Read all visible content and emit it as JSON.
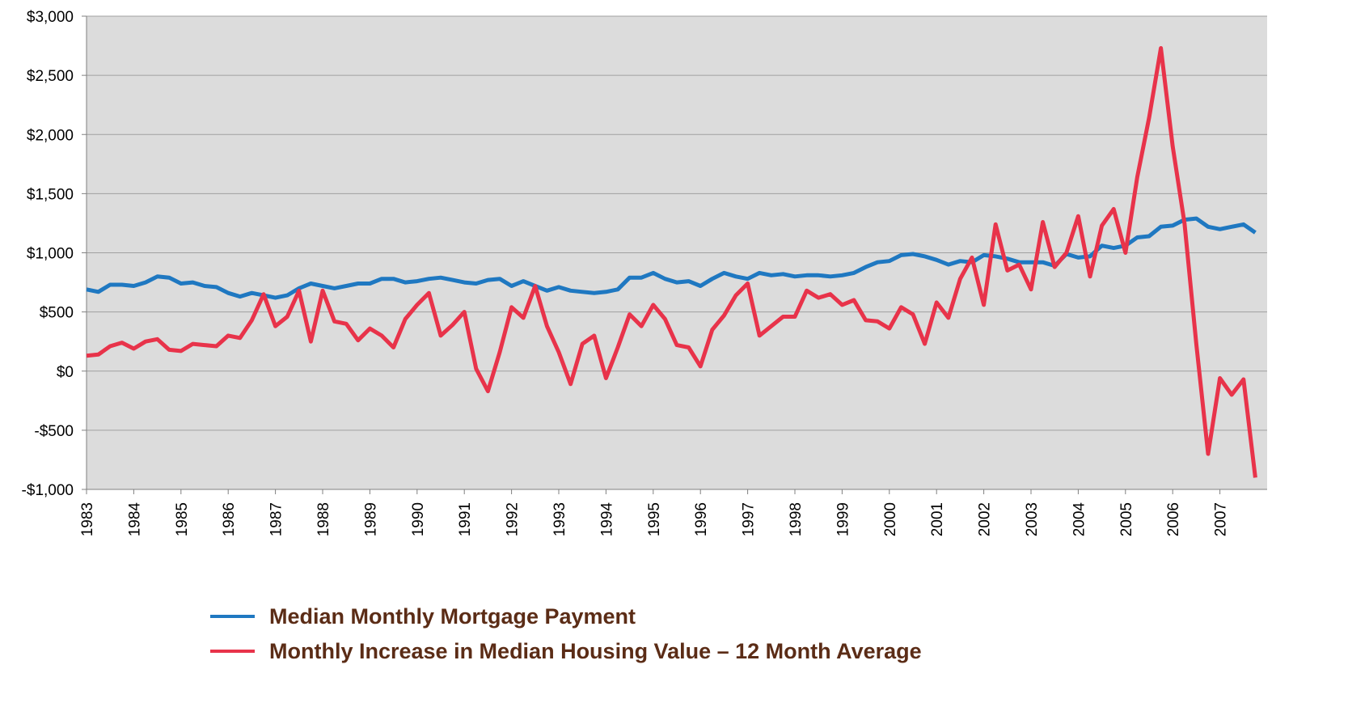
{
  "chart_data": {
    "type": "line",
    "x": [
      1983,
      1983.25,
      1983.5,
      1983.75,
      1984,
      1984.25,
      1984.5,
      1984.75,
      1985,
      1985.25,
      1985.5,
      1985.75,
      1986,
      1986.25,
      1986.5,
      1986.75,
      1987,
      1987.25,
      1987.5,
      1987.75,
      1988,
      1988.25,
      1988.5,
      1988.75,
      1989,
      1989.25,
      1989.5,
      1989.75,
      1990,
      1990.25,
      1990.5,
      1990.75,
      1991,
      1991.25,
      1991.5,
      1991.75,
      1992,
      1992.25,
      1992.5,
      1992.75,
      1993,
      1993.25,
      1993.5,
      1993.75,
      1994,
      1994.25,
      1994.5,
      1994.75,
      1995,
      1995.25,
      1995.5,
      1995.75,
      1996,
      1996.25,
      1996.5,
      1996.75,
      1997,
      1997.25,
      1997.5,
      1997.75,
      1998,
      1998.25,
      1998.5,
      1998.75,
      1999,
      1999.25,
      1999.5,
      1999.75,
      2000,
      2000.25,
      2000.5,
      2000.75,
      2001,
      2001.25,
      2001.5,
      2001.75,
      2002,
      2002.25,
      2002.5,
      2002.75,
      2003,
      2003.25,
      2003.5,
      2003.75,
      2004,
      2004.25,
      2004.5,
      2004.75,
      2005,
      2005.25,
      2005.5,
      2005.75,
      2006,
      2006.25,
      2006.5,
      2006.75,
      2007,
      2007.25,
      2007.5,
      2007.75
    ],
    "series": [
      {
        "name": "Median Monthly Mortgage Payment",
        "color": "#1f78c1",
        "values": [
          690,
          670,
          730,
          730,
          720,
          750,
          800,
          790,
          740,
          750,
          720,
          710,
          660,
          630,
          660,
          640,
          620,
          640,
          700,
          740,
          720,
          700,
          720,
          740,
          740,
          780,
          780,
          750,
          760,
          780,
          790,
          770,
          750,
          740,
          770,
          780,
          720,
          760,
          720,
          680,
          710,
          680,
          670,
          660,
          670,
          690,
          790,
          790,
          830,
          780,
          750,
          760,
          720,
          780,
          830,
          800,
          780,
          830,
          810,
          820,
          800,
          810,
          810,
          800,
          810,
          830,
          880,
          920,
          930,
          980,
          990,
          970,
          940,
          900,
          930,
          920,
          980,
          970,
          950,
          920,
          920,
          920,
          890,
          990,
          960,
          970,
          1060,
          1040,
          1060,
          1130,
          1140,
          1220,
          1230,
          1280,
          1290,
          1220,
          1200,
          1220,
          1240,
          1170
        ]
      },
      {
        "name": "Monthly Increase in Median Housing Value – 12 Month Average",
        "color": "#e8334a",
        "values": [
          130,
          140,
          210,
          240,
          190,
          250,
          270,
          180,
          170,
          230,
          220,
          210,
          300,
          280,
          430,
          650,
          380,
          460,
          680,
          250,
          680,
          420,
          400,
          260,
          360,
          300,
          200,
          440,
          560,
          660,
          300,
          390,
          500,
          20,
          -170,
          160,
          540,
          450,
          720,
          380,
          160,
          -110,
          230,
          300,
          -60,
          200,
          480,
          380,
          560,
          440,
          220,
          200,
          40,
          350,
          470,
          640,
          740,
          300,
          380,
          460,
          460,
          680,
          620,
          650,
          560,
          600,
          430,
          420,
          360,
          540,
          480,
          230,
          580,
          450,
          780,
          960,
          560,
          1240,
          850,
          900,
          690,
          1260,
          880,
          1000,
          1310,
          800,
          1230,
          1370,
          1000,
          1640,
          2140,
          2730,
          1900,
          1250,
          230,
          -700,
          -60,
          -200,
          -70,
          -900
        ]
      }
    ],
    "xlim": [
      1983,
      2008
    ],
    "xticks": [
      1983,
      1984,
      1985,
      1986,
      1987,
      1988,
      1989,
      1990,
      1991,
      1992,
      1993,
      1994,
      1995,
      1996,
      1997,
      1998,
      1999,
      2000,
      2001,
      2002,
      2003,
      2004,
      2005,
      2006,
      2007
    ],
    "ylim": [
      -1000,
      3000
    ],
    "yticks": [
      {
        "value": -1000,
        "label": "-$1,000"
      },
      {
        "value": -500,
        "label": "-$500"
      },
      {
        "value": 0,
        "label": "$0"
      },
      {
        "value": 500,
        "label": "$500"
      },
      {
        "value": 1000,
        "label": "$1,000"
      },
      {
        "value": 1500,
        "label": "$1,500"
      },
      {
        "value": 2000,
        "label": "$2,000"
      },
      {
        "value": 2500,
        "label": "$2,500"
      },
      {
        "value": 3000,
        "label": "$3,000"
      }
    ],
    "grid": true
  }
}
